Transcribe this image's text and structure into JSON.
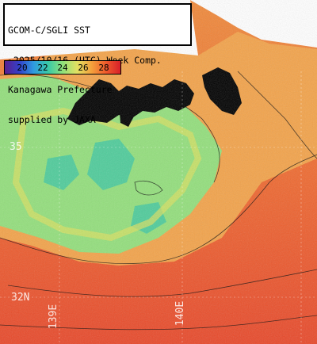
{
  "title_lines": [
    "GCOM-C/SGLI SST",
    "~2025/10/16 (UTC) Week Comp.",
    "Kanagawa Prefecture",
    "supplied by JAXA"
  ],
  "legend": {
    "ticks": [
      "20",
      "22",
      "24",
      "26",
      "28"
    ],
    "range": [
      18,
      30
    ],
    "colors": [
      "#5a1f8e",
      "#3340c9",
      "#2f9be0",
      "#39c9a8",
      "#8fe07a",
      "#e2e062",
      "#f4a13c",
      "#ef5a2c",
      "#d8202a"
    ]
  },
  "grid_labels": {
    "lat_35": "35",
    "lat_32": "32N",
    "lon_139": "139E",
    "lon_140": "140E"
  },
  "palette": {
    "land": "#000000",
    "cloud": "#ffffff",
    "warm": "#e8542c",
    "mid": "#f29a3c",
    "cool": "#93df7c",
    "cold": "#36c5a8"
  }
}
